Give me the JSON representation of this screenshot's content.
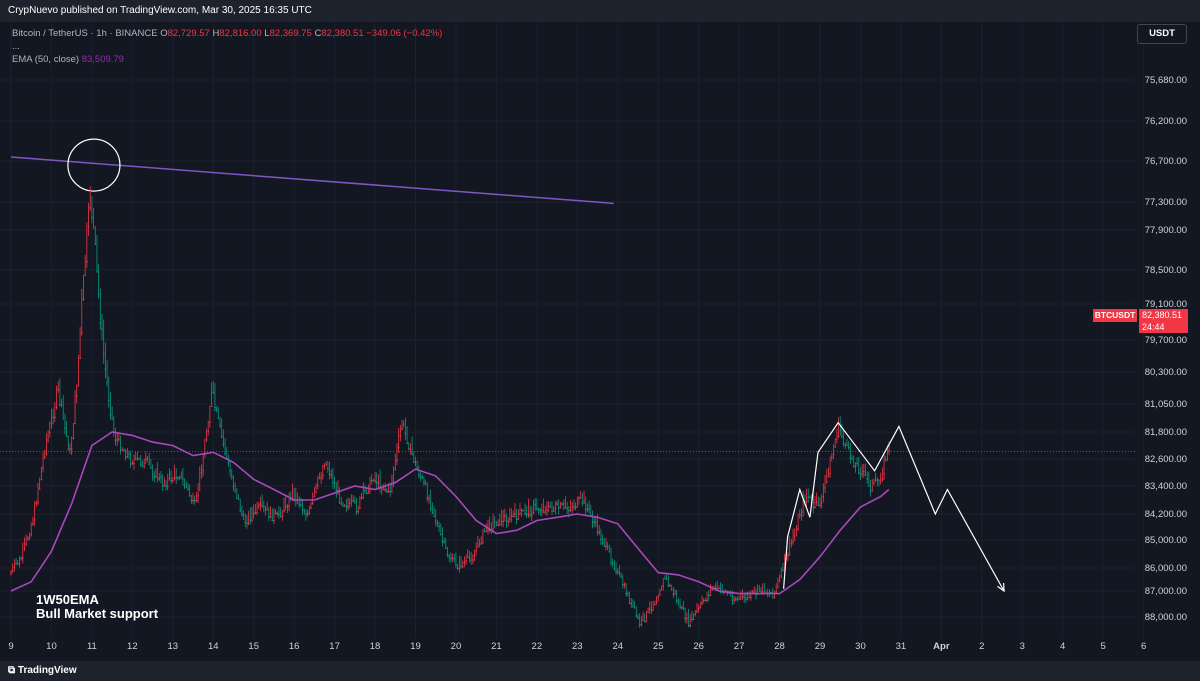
{
  "header": {
    "published": "CrypNuevo published on TradingView.com, Mar 30, 2025 16:35 UTC"
  },
  "legend": {
    "symbol": "Bitcoin / TetherUS · 1h · BINANCE",
    "o_label": "O",
    "o": "82,729.57",
    "h_label": "H",
    "h": "82,816.00",
    "l_label": "L",
    "l": "82,369.75",
    "c_label": "C",
    "c": "82,380.51",
    "change": "−349.06 (−0.42%)",
    "more": "...",
    "ema_label": "EMA (50, close)",
    "ema_value": "83,509.79"
  },
  "currency_button": "USDT",
  "price_tag": {
    "symbol": "BTCUSDT",
    "price": "82,380.51",
    "countdown": "24:44"
  },
  "annotation": {
    "line1": "1W50EMA",
    "line2": "Bull Market support"
  },
  "footer": {
    "brand": "TradingView"
  },
  "colors": {
    "background": "#131722",
    "up": "#089981",
    "down": "#f23645",
    "ema": "#ab47bc",
    "support": "#7e57c2",
    "drawing": "#ffffff"
  },
  "chart_data": {
    "type": "candlestick",
    "y_axis_ticks": [
      "88,000.00",
      "87,000.00",
      "86,000.00",
      "85,000.00",
      "84,200.00",
      "83,400.00",
      "82,600.00",
      "81,800.00",
      "81,050.00",
      "80,300.00",
      "79,700.00",
      "79,100.00",
      "78,500.00",
      "77,900.00",
      "77,300.00",
      "76,700.00",
      "76,200.00",
      "75,680.00"
    ],
    "y_axis_values": [
      88000,
      87000,
      86000,
      85000,
      84200,
      83400,
      82600,
      81800,
      81050,
      80300,
      79700,
      79100,
      78500,
      77900,
      77300,
      76700,
      76200,
      75680
    ],
    "x_axis_ticks": [
      "9",
      "10",
      "11",
      "12",
      "13",
      "14",
      "15",
      "16",
      "17",
      "18",
      "19",
      "20",
      "21",
      "22",
      "23",
      "24",
      "25",
      "26",
      "27",
      "28",
      "29",
      "30",
      "31",
      "Apr",
      "2",
      "3",
      "4",
      "5",
      "6"
    ],
    "x_axis_day": [
      9,
      10,
      11,
      12,
      13,
      14,
      15,
      16,
      17,
      18,
      19,
      20,
      21,
      22,
      23,
      24,
      25,
      26,
      27,
      28,
      29,
      30,
      31,
      32,
      33,
      34,
      35,
      36,
      37
    ],
    "price_path_days": [
      9,
      9.3,
      9.6,
      9.9,
      10.2,
      10.5,
      10.8,
      11.0,
      11.3,
      11.6,
      12.0,
      12.4,
      12.8,
      13.2,
      13.6,
      14.0,
      14.4,
      14.8,
      15.2,
      15.6,
      16.0,
      16.4,
      16.8,
      17.2,
      17.6,
      18.0,
      18.4,
      18.7,
      19.0,
      19.4,
      19.8,
      20.1,
      20.4,
      20.8,
      21.2,
      21.6,
      22.0,
      22.4,
      22.8,
      23.2,
      23.6,
      24.0,
      24.3,
      24.6,
      24.9,
      25.2,
      25.5,
      25.8,
      26.1,
      26.4,
      26.7,
      27.0,
      27.3,
      27.6,
      27.9,
      28.1,
      28.3,
      28.5,
      28.7,
      28.9,
      29.1,
      29.3,
      29.5,
      29.7,
      29.9,
      30.1,
      30.3,
      30.5,
      30.7
    ],
    "price_path_values": [
      86200,
      85600,
      84200,
      82100,
      80700,
      82400,
      79000,
      77200,
      79700,
      81900,
      82600,
      82700,
      83300,
      83000,
      84000,
      80700,
      82700,
      84400,
      84000,
      84300,
      83600,
      84200,
      82600,
      83800,
      84000,
      83100,
      83600,
      81500,
      82600,
      83800,
      85400,
      85900,
      85600,
      84600,
      84300,
      84200,
      84000,
      84000,
      84000,
      83800,
      84800,
      86000,
      87200,
      88300,
      87500,
      86400,
      87300,
      88200,
      87500,
      86800,
      87000,
      87300,
      87200,
      86900,
      87100,
      86100,
      85200,
      84300,
      83600,
      84000,
      83700,
      82600,
      81600,
      82300,
      82700,
      83000,
      83400,
      83200,
      82400
    ],
    "ema50_days": [
      9,
      9.5,
      10,
      10.5,
      11,
      11.5,
      12,
      12.5,
      13,
      13.5,
      14,
      14.5,
      15,
      15.5,
      16,
      16.5,
      17,
      17.5,
      18,
      18.5,
      19,
      19.5,
      20,
      20.5,
      21,
      21.5,
      22,
      22.5,
      23,
      23.5,
      24,
      24.5,
      25,
      25.5,
      26,
      26.5,
      27,
      27.5,
      28,
      28.5,
      29,
      29.5,
      30,
      30.5,
      30.7
    ],
    "ema50_values": [
      87000,
      86600,
      85400,
      83900,
      82200,
      81800,
      81900,
      82100,
      82200,
      82500,
      82400,
      82700,
      83200,
      83500,
      83800,
      83800,
      83600,
      83400,
      83500,
      83300,
      82900,
      83100,
      83700,
      84400,
      84800,
      84700,
      84400,
      84300,
      84200,
      84300,
      84500,
      85300,
      86200,
      86300,
      86600,
      87000,
      87100,
      87100,
      87100,
      86500,
      85600,
      84700,
      84000,
      83700,
      83500
    ],
    "support_line": {
      "name": "1W50EMA",
      "start": {
        "day": 9.0,
        "price": 76650
      },
      "end": {
        "day": 23.9,
        "price": 77330
      }
    },
    "current_price": 82380.51,
    "projection": {
      "days": [
        28.1,
        28.2,
        28.5,
        28.75,
        28.95,
        29.45,
        30.35,
        30.95,
        31.85,
        32.15,
        33.55
      ],
      "values": [
        86900,
        84900,
        83500,
        84300,
        82400,
        81550,
        82950,
        81650,
        84200,
        83500,
        87000
      ]
    }
  }
}
